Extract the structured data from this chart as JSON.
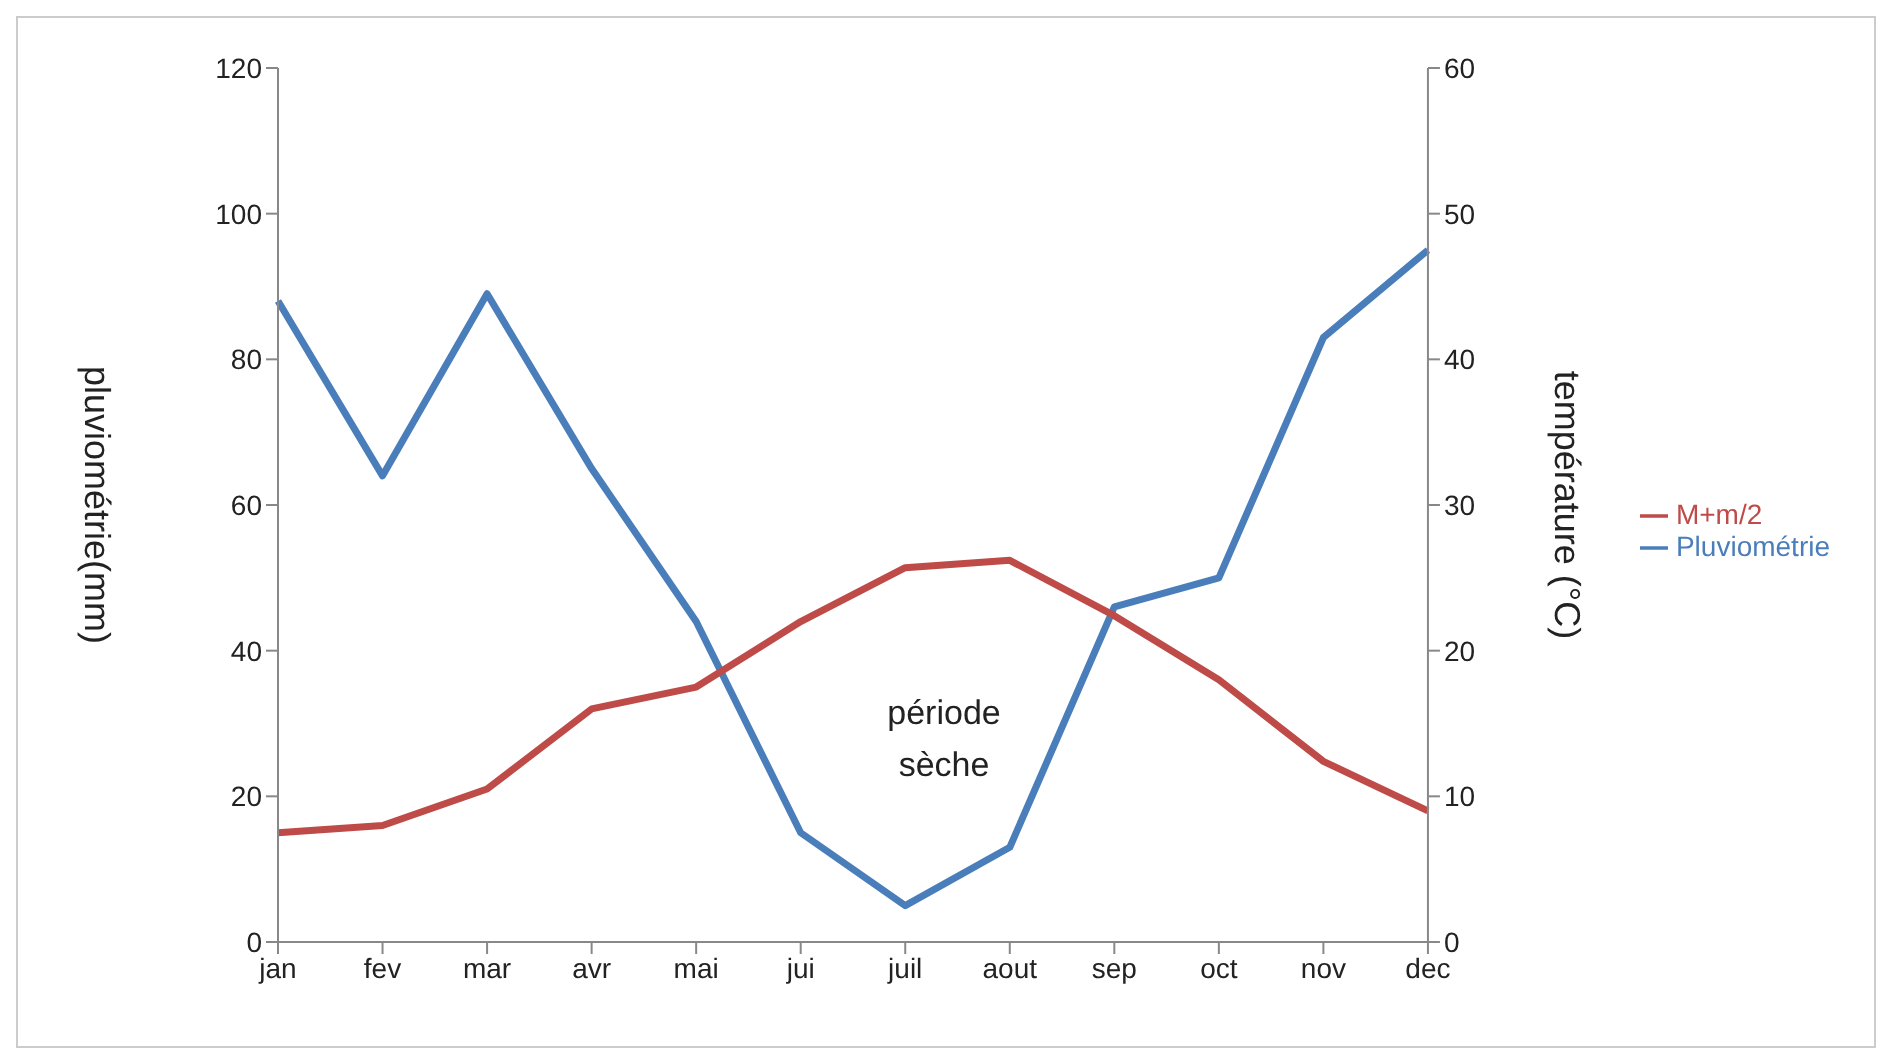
{
  "chart_data": {
    "type": "line",
    "categories": [
      "jan",
      "fev",
      "mar",
      "avr",
      "mai",
      "jui",
      "juil",
      "aout",
      "sep",
      "oct",
      "nov",
      "dec"
    ],
    "series": [
      {
        "name": "Pluviométrie",
        "color": "#4a7ebb",
        "values": [
          88,
          64,
          89,
          65,
          44,
          15,
          5,
          13,
          46,
          50,
          83,
          95
        ]
      },
      {
        "name": "M+m/2",
        "color": "#be4b48",
        "axis": "y2",
        "values": [
          7.5,
          8,
          10.5,
          16,
          17.5,
          22,
          25.7,
          26.2,
          22.4,
          18,
          12.4,
          9
        ]
      }
    ],
    "ylabel": "pluviométrie(mm)",
    "y2label": "température (°C)",
    "ylim": [
      0,
      120
    ],
    "yticks": [
      0,
      20,
      40,
      60,
      80,
      100,
      120
    ],
    "y2lim": [
      0,
      60
    ],
    "y2ticks": [
      0,
      10,
      20,
      30,
      40,
      50,
      60
    ],
    "annotations": [
      "période sèche"
    ],
    "legend": "right",
    "grid": false,
    "marker": "none",
    "line_style": "solid"
  }
}
